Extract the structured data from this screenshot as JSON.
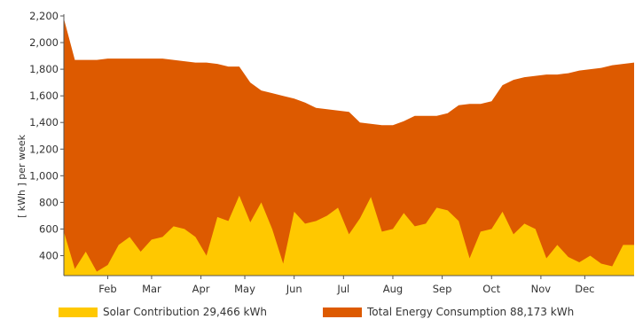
{
  "chart_data": {
    "type": "area",
    "title": "",
    "xlabel": "",
    "ylabel": "[ kWh ] per week",
    "ylim": [
      250,
      2200
    ],
    "grid": false,
    "legend_position": "bottom",
    "y_ticks": [
      400,
      600,
      800,
      1000,
      1200,
      1400,
      1600,
      1800,
      2000,
      2200
    ],
    "y_tick_labels": [
      "400",
      "600",
      "800",
      "1,000",
      "1,200",
      "1,400",
      "1,600",
      "1,800",
      "2,000",
      "2,200"
    ],
    "x_tick_labels": [
      "Feb",
      "Mar",
      "Apr",
      "May",
      "Jun",
      "Jul",
      "Aug",
      "Sep",
      "Oct",
      "Nov",
      "Dec"
    ],
    "x_tick_weeks": [
      5,
      9,
      13.5,
      17.5,
      22,
      26.5,
      31,
      35.5,
      40,
      44.5,
      48.5
    ],
    "weeks": [
      1,
      2,
      3,
      4,
      5,
      6,
      7,
      8,
      9,
      10,
      11,
      12,
      13,
      14,
      15,
      16,
      17,
      18,
      19,
      20,
      21,
      22,
      23,
      24,
      25,
      26,
      27,
      28,
      29,
      30,
      31,
      32,
      33,
      34,
      35,
      36,
      37,
      38,
      39,
      40,
      41,
      42,
      43,
      44,
      45,
      46,
      47,
      48,
      49,
      50,
      51,
      52,
      53
    ],
    "series": [
      {
        "name": "Total Energy Consumption",
        "color": "#dd5a00",
        "legend_label": "Total Energy Consumption 88,173 kWh",
        "values": [
          2180,
          1870,
          1870,
          1870,
          1880,
          1880,
          1880,
          1880,
          1880,
          1880,
          1870,
          1860,
          1850,
          1850,
          1840,
          1820,
          1820,
          1700,
          1640,
          1620,
          1600,
          1580,
          1550,
          1510,
          1500,
          1490,
          1480,
          1400,
          1390,
          1380,
          1380,
          1410,
          1450,
          1450,
          1450,
          1470,
          1530,
          1540,
          1540,
          1560,
          1680,
          1720,
          1740,
          1750,
          1760,
          1760,
          1770,
          1790,
          1800,
          1810,
          1830,
          1840,
          1850
        ]
      },
      {
        "name": "Solar Contribution",
        "color": "#ffc800",
        "legend_label": "Solar Contribution 29,466 kWh",
        "values": [
          580,
          300,
          430,
          280,
          330,
          480,
          540,
          430,
          520,
          540,
          620,
          600,
          540,
          400,
          690,
          660,
          850,
          650,
          800,
          600,
          340,
          730,
          640,
          660,
          700,
          760,
          560,
          680,
          840,
          580,
          600,
          720,
          620,
          640,
          760,
          740,
          660,
          380,
          580,
          600,
          730,
          560,
          640,
          600,
          380,
          480,
          390,
          350,
          400,
          340,
          320,
          480,
          480
        ]
      }
    ]
  }
}
